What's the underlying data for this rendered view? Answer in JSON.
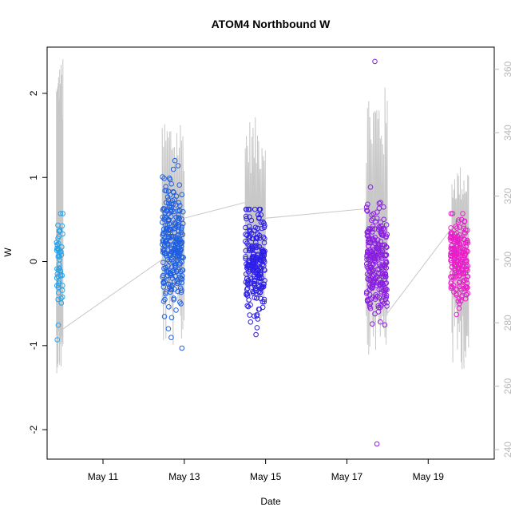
{
  "chart_data": {
    "type": "scatter",
    "title": "ATOM4 Northbound W",
    "xlabel": "Date",
    "ylabel": "W",
    "xlim": [
      "2020-05-09T15:00",
      "2020-05-20T15:00"
    ],
    "ylim": [
      -2.35,
      2.55
    ],
    "x_ticks": [
      {
        "date": "2020-05-11",
        "label": "May 11"
      },
      {
        "date": "2020-05-13",
        "label": "May 13"
      },
      {
        "date": "2020-05-15",
        "label": "May 15"
      },
      {
        "date": "2020-05-17",
        "label": "May 17"
      },
      {
        "date": "2020-05-19",
        "label": "May 19"
      }
    ],
    "y_ticks": [
      -2,
      -1,
      0,
      1,
      2
    ],
    "right_axis": {
      "ylim": [
        237,
        367
      ],
      "ticks": [
        240,
        260,
        280,
        300,
        320,
        340,
        360
      ],
      "color": "#b8b8b8"
    },
    "grid": false,
    "legend": "none",
    "series": [
      {
        "role": "points",
        "marker": "open-circle",
        "clusters": [
          {
            "start": "2020-05-09T20:30",
            "end": "2020-05-10T00:20",
            "center": -0.05,
            "spread": 0.3,
            "min": -0.93,
            "max": 0.57,
            "n": 55,
            "color": "#29a3e8"
          },
          {
            "start": "2020-05-12T11:00",
            "end": "2020-05-12T23:30",
            "center": 0.2,
            "spread": 0.38,
            "min": -1.03,
            "max": 1.2,
            "n": 260,
            "color": "#1f5fe0"
          },
          {
            "start": "2020-05-14T12:00",
            "end": "2020-05-14T23:30",
            "center": -0.05,
            "spread": 0.32,
            "min": -0.87,
            "max": 0.62,
            "n": 230,
            "color": "#2d1fe8"
          },
          {
            "start": "2020-05-17T11:30",
            "end": "2020-05-17T23:45",
            "center": 0.0,
            "spread": 0.3,
            "min": -2.17,
            "max": 2.38,
            "n": 250,
            "color": "#8a1fe0"
          },
          {
            "start": "2020-05-19T13:00",
            "end": "2020-05-19T23:30",
            "center": 0.03,
            "spread": 0.25,
            "min": -0.63,
            "max": 0.57,
            "n": 200,
            "color": "#e81fc9"
          }
        ]
      },
      {
        "role": "line",
        "axis": "right",
        "color": "#c8c8c8",
        "connectors": [
          {
            "x": "2020-05-10T00:10",
            "y": 278
          },
          {
            "x": "2020-05-12T11:00",
            "y": 300
          },
          {
            "x": "2020-05-12T23:50",
            "y": 313
          },
          {
            "x": "2020-05-14T12:00",
            "y": 318
          },
          {
            "x": "2020-05-14T23:50",
            "y": 313
          },
          {
            "x": "2020-05-17T11:30",
            "y": 316
          },
          {
            "x": "2020-05-17T23:50",
            "y": 283
          },
          {
            "x": "2020-05-19T14:00",
            "y": 310
          }
        ],
        "segments": [
          {
            "start": "2020-05-09T20:30",
            "end": "2020-05-10T00:20",
            "base": 293,
            "lo": 264,
            "hi": 364
          },
          {
            "start": "2020-05-12T11:00",
            "end": "2020-05-12T23:50",
            "base": 305,
            "lo": 272,
            "hi": 346
          },
          {
            "start": "2020-05-14T12:00",
            "end": "2020-05-14T23:50",
            "base": 305,
            "lo": 286,
            "hi": 345
          },
          {
            "start": "2020-05-17T11:30",
            "end": "2020-05-17T23:50",
            "base": 300,
            "lo": 270,
            "hi": 355
          },
          {
            "start": "2020-05-19T14:00",
            "end": "2020-05-19T23:50",
            "base": 303,
            "lo": 265,
            "hi": 330
          }
        ]
      }
    ]
  }
}
